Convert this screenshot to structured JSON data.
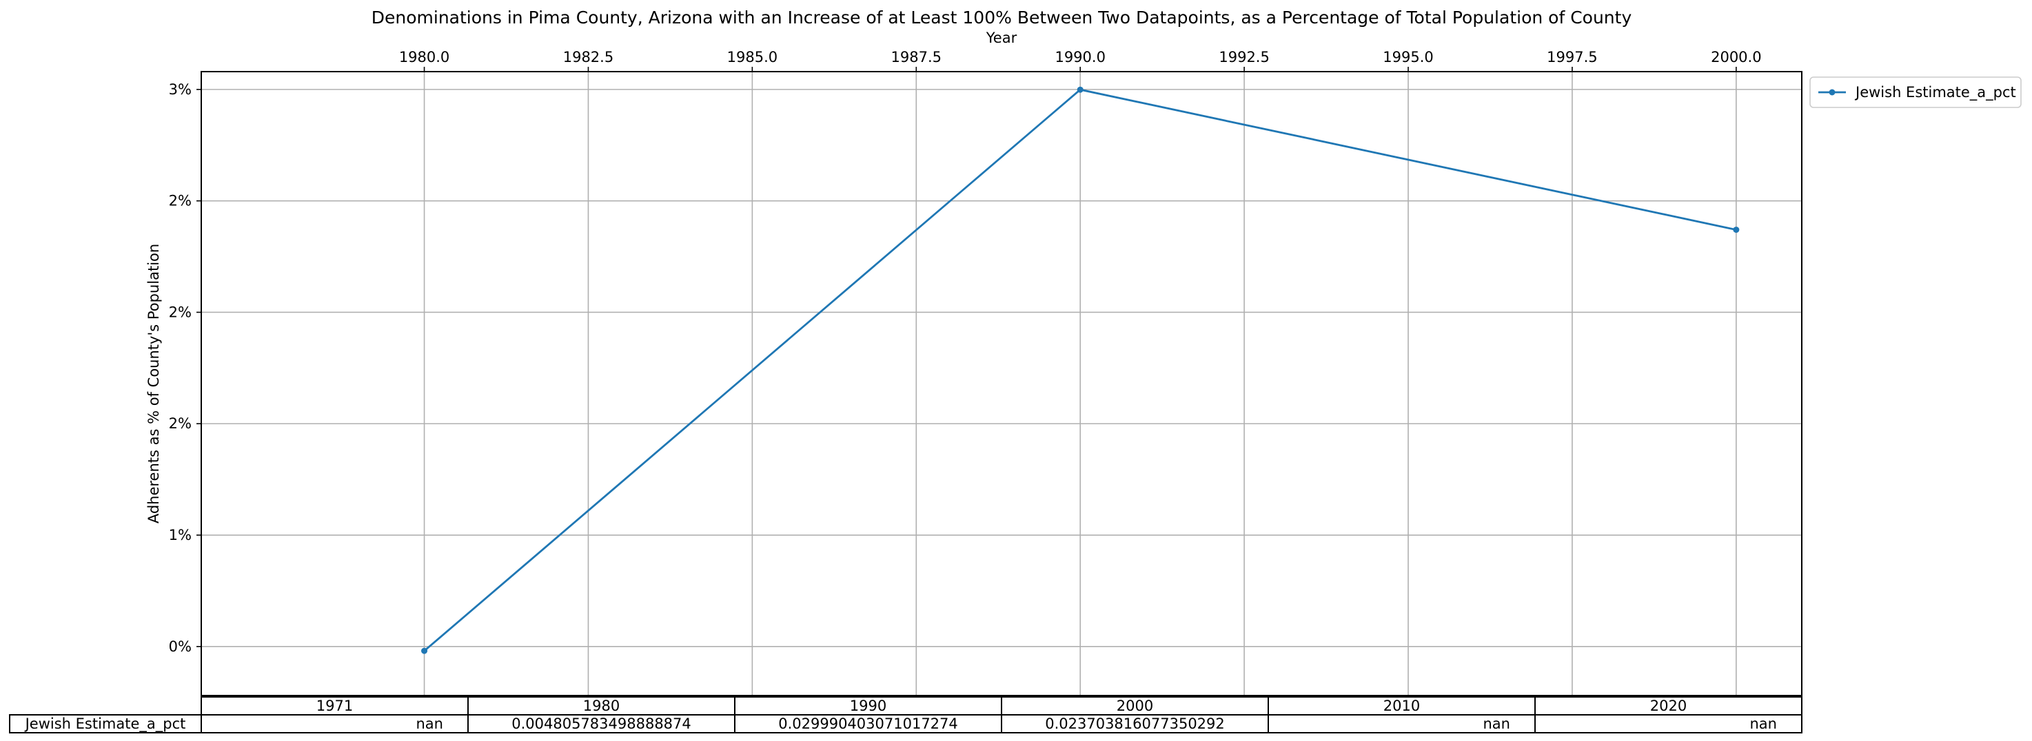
{
  "chart_data": {
    "type": "line",
    "title": "Denominations in Pima County, Arizona with an Increase of at Least 100% Between Two Datapoints, as a Percentage of Total Population of County",
    "xlabel": "Year",
    "ylabel": "Adherents as % of County's Population",
    "xlim": [
      1976.6,
      2001.0
    ],
    "ylim": [
      0.0028,
      0.0308
    ],
    "x_ticks": [
      {
        "value": 1980.0,
        "label": "1980.0"
      },
      {
        "value": 1982.5,
        "label": "1982.5"
      },
      {
        "value": 1985.0,
        "label": "1985.0"
      },
      {
        "value": 1987.5,
        "label": "1987.5"
      },
      {
        "value": 1990.0,
        "label": "1990.0"
      },
      {
        "value": 1992.5,
        "label": "1992.5"
      },
      {
        "value": 1995.0,
        "label": "1995.0"
      },
      {
        "value": 1997.5,
        "label": "1997.5"
      },
      {
        "value": 2000.0,
        "label": "2000.0"
      }
    ],
    "y_ticks": [
      {
        "value": 0.005,
        "label": "0%"
      },
      {
        "value": 0.01,
        "label": "1%"
      },
      {
        "value": 0.015,
        "label": "2%"
      },
      {
        "value": 0.02,
        "label": "2%"
      },
      {
        "value": 0.025,
        "label": "2%"
      },
      {
        "value": 0.03,
        "label": "3%"
      }
    ],
    "grid": true,
    "legend_position": "outside-top-right",
    "series": [
      {
        "name": "Jewish Estimate_a_pct",
        "color": "#1f77b4",
        "x": [
          1980,
          1990,
          2000
        ],
        "y": [
          0.004805783498888874,
          0.029990403071017274,
          0.023703816077350292
        ]
      }
    ],
    "table": {
      "columns": [
        "1971",
        "1980",
        "1990",
        "2000",
        "2010",
        "2020"
      ],
      "rows": [
        {
          "label": "Jewish Estimate_a_pct",
          "cells": [
            "nan",
            "0.004805783498888874",
            "0.029990403071017274",
            "0.023703816077350292",
            "nan",
            "nan"
          ]
        }
      ]
    }
  }
}
